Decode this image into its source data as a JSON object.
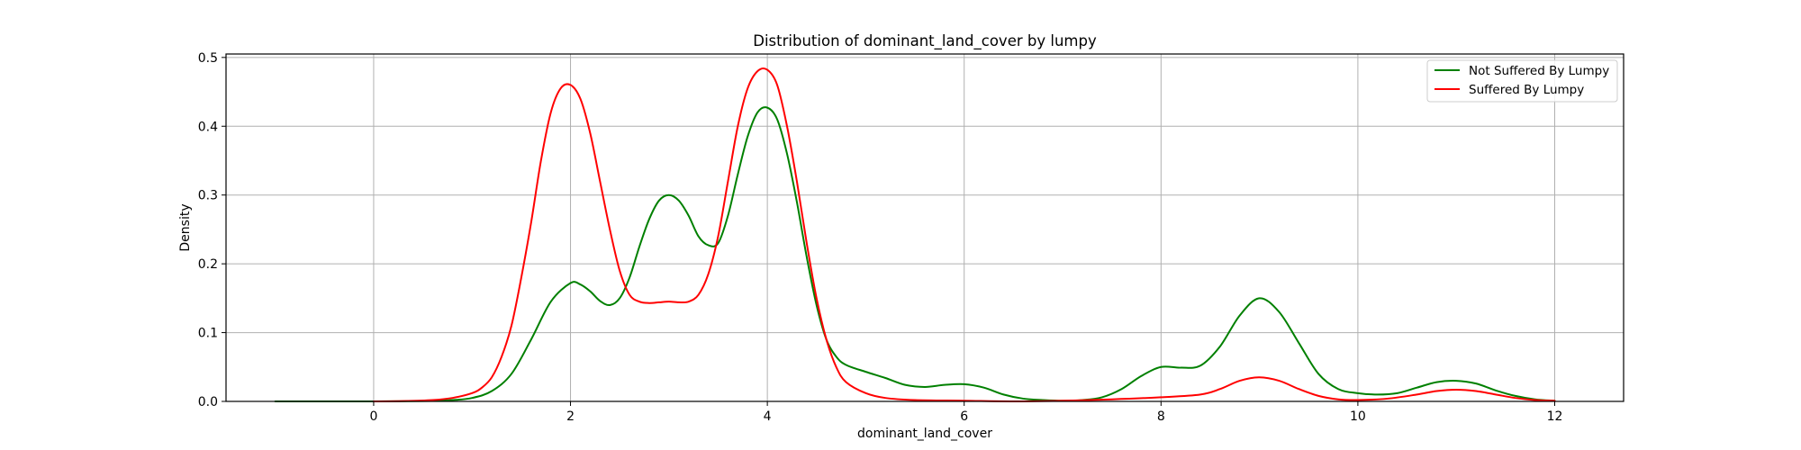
{
  "chart_data": {
    "type": "line",
    "title": "Distribution of dominant_land_cover by lumpy",
    "xlabel": "dominant_land_cover",
    "ylabel": "Density",
    "xlim": [
      -1.5,
      12.7
    ],
    "ylim": [
      0,
      0.505
    ],
    "xticks": [
      0,
      2,
      4,
      6,
      8,
      10,
      12
    ],
    "yticks": [
      0.0,
      0.1,
      0.2,
      0.3,
      0.4,
      0.5
    ],
    "xtick_labels": [
      "0",
      "2",
      "4",
      "6",
      "8",
      "10",
      "12"
    ],
    "ytick_labels": [
      "0.0",
      "0.1",
      "0.2",
      "0.3",
      "0.4",
      "0.5"
    ],
    "grid": true,
    "legend_position": "top-right",
    "series": [
      {
        "name": "Not Suffered By Lumpy",
        "color": "#008000",
        "points": [
          [
            -1.0,
            0.0
          ],
          [
            -0.5,
            0.0
          ],
          [
            0.0,
            0.0
          ],
          [
            0.5,
            0.0005
          ],
          [
            0.8,
            0.002
          ],
          [
            1.0,
            0.005
          ],
          [
            1.2,
            0.015
          ],
          [
            1.4,
            0.04
          ],
          [
            1.6,
            0.09
          ],
          [
            1.8,
            0.145
          ],
          [
            2.0,
            0.172
          ],
          [
            2.1,
            0.17
          ],
          [
            2.2,
            0.16
          ],
          [
            2.3,
            0.146
          ],
          [
            2.4,
            0.14
          ],
          [
            2.5,
            0.15
          ],
          [
            2.6,
            0.18
          ],
          [
            2.7,
            0.225
          ],
          [
            2.8,
            0.265
          ],
          [
            2.9,
            0.292
          ],
          [
            3.0,
            0.3
          ],
          [
            3.1,
            0.292
          ],
          [
            3.2,
            0.27
          ],
          [
            3.3,
            0.24
          ],
          [
            3.4,
            0.227
          ],
          [
            3.5,
            0.23
          ],
          [
            3.6,
            0.27
          ],
          [
            3.7,
            0.33
          ],
          [
            3.8,
            0.385
          ],
          [
            3.9,
            0.42
          ],
          [
            4.0,
            0.427
          ],
          [
            4.1,
            0.41
          ],
          [
            4.2,
            0.36
          ],
          [
            4.3,
            0.29
          ],
          [
            4.4,
            0.21
          ],
          [
            4.5,
            0.14
          ],
          [
            4.6,
            0.09
          ],
          [
            4.7,
            0.065
          ],
          [
            4.8,
            0.053
          ],
          [
            5.0,
            0.043
          ],
          [
            5.2,
            0.034
          ],
          [
            5.4,
            0.024
          ],
          [
            5.6,
            0.021
          ],
          [
            5.8,
            0.024
          ],
          [
            6.0,
            0.025
          ],
          [
            6.2,
            0.02
          ],
          [
            6.4,
            0.01
          ],
          [
            6.6,
            0.004
          ],
          [
            6.8,
            0.002
          ],
          [
            7.0,
            0.001
          ],
          [
            7.2,
            0.002
          ],
          [
            7.4,
            0.006
          ],
          [
            7.6,
            0.018
          ],
          [
            7.8,
            0.037
          ],
          [
            8.0,
            0.05
          ],
          [
            8.2,
            0.049
          ],
          [
            8.4,
            0.052
          ],
          [
            8.6,
            0.08
          ],
          [
            8.8,
            0.125
          ],
          [
            9.0,
            0.15
          ],
          [
            9.2,
            0.13
          ],
          [
            9.4,
            0.085
          ],
          [
            9.6,
            0.04
          ],
          [
            9.8,
            0.018
          ],
          [
            10.0,
            0.012
          ],
          [
            10.2,
            0.01
          ],
          [
            10.4,
            0.012
          ],
          [
            10.6,
            0.02
          ],
          [
            10.8,
            0.028
          ],
          [
            11.0,
            0.03
          ],
          [
            11.2,
            0.026
          ],
          [
            11.4,
            0.016
          ],
          [
            11.6,
            0.008
          ],
          [
            11.8,
            0.003
          ],
          [
            12.0,
            0.001
          ]
        ]
      },
      {
        "name": "Suffered By Lumpy",
        "color": "#ff0000",
        "points": [
          [
            0.0,
            0.0
          ],
          [
            0.3,
            0.0005
          ],
          [
            0.6,
            0.002
          ],
          [
            0.8,
            0.005
          ],
          [
            1.0,
            0.012
          ],
          [
            1.1,
            0.02
          ],
          [
            1.2,
            0.035
          ],
          [
            1.3,
            0.065
          ],
          [
            1.4,
            0.11
          ],
          [
            1.5,
            0.18
          ],
          [
            1.6,
            0.26
          ],
          [
            1.7,
            0.35
          ],
          [
            1.8,
            0.42
          ],
          [
            1.9,
            0.455
          ],
          [
            2.0,
            0.46
          ],
          [
            2.1,
            0.44
          ],
          [
            2.2,
            0.39
          ],
          [
            2.3,
            0.32
          ],
          [
            2.4,
            0.25
          ],
          [
            2.5,
            0.19
          ],
          [
            2.6,
            0.155
          ],
          [
            2.7,
            0.145
          ],
          [
            2.8,
            0.143
          ],
          [
            2.9,
            0.144
          ],
          [
            3.0,
            0.145
          ],
          [
            3.1,
            0.144
          ],
          [
            3.2,
            0.145
          ],
          [
            3.3,
            0.155
          ],
          [
            3.4,
            0.185
          ],
          [
            3.5,
            0.24
          ],
          [
            3.6,
            0.32
          ],
          [
            3.7,
            0.4
          ],
          [
            3.8,
            0.455
          ],
          [
            3.9,
            0.48
          ],
          [
            4.0,
            0.482
          ],
          [
            4.1,
            0.46
          ],
          [
            4.2,
            0.4
          ],
          [
            4.3,
            0.32
          ],
          [
            4.4,
            0.23
          ],
          [
            4.5,
            0.15
          ],
          [
            4.6,
            0.09
          ],
          [
            4.7,
            0.05
          ],
          [
            4.8,
            0.028
          ],
          [
            5.0,
            0.012
          ],
          [
            5.2,
            0.005
          ],
          [
            5.5,
            0.002
          ],
          [
            6.0,
            0.001
          ],
          [
            6.5,
            0.0
          ],
          [
            7.0,
            0.001
          ],
          [
            7.5,
            0.003
          ],
          [
            8.0,
            0.006
          ],
          [
            8.4,
            0.01
          ],
          [
            8.6,
            0.018
          ],
          [
            8.8,
            0.03
          ],
          [
            9.0,
            0.035
          ],
          [
            9.2,
            0.03
          ],
          [
            9.4,
            0.018
          ],
          [
            9.6,
            0.008
          ],
          [
            9.8,
            0.003
          ],
          [
            10.0,
            0.002
          ],
          [
            10.3,
            0.004
          ],
          [
            10.6,
            0.01
          ],
          [
            10.8,
            0.015
          ],
          [
            11.0,
            0.017
          ],
          [
            11.2,
            0.015
          ],
          [
            11.4,
            0.01
          ],
          [
            11.6,
            0.005
          ],
          [
            11.8,
            0.002
          ],
          [
            12.0,
            0.001
          ]
        ]
      }
    ]
  }
}
